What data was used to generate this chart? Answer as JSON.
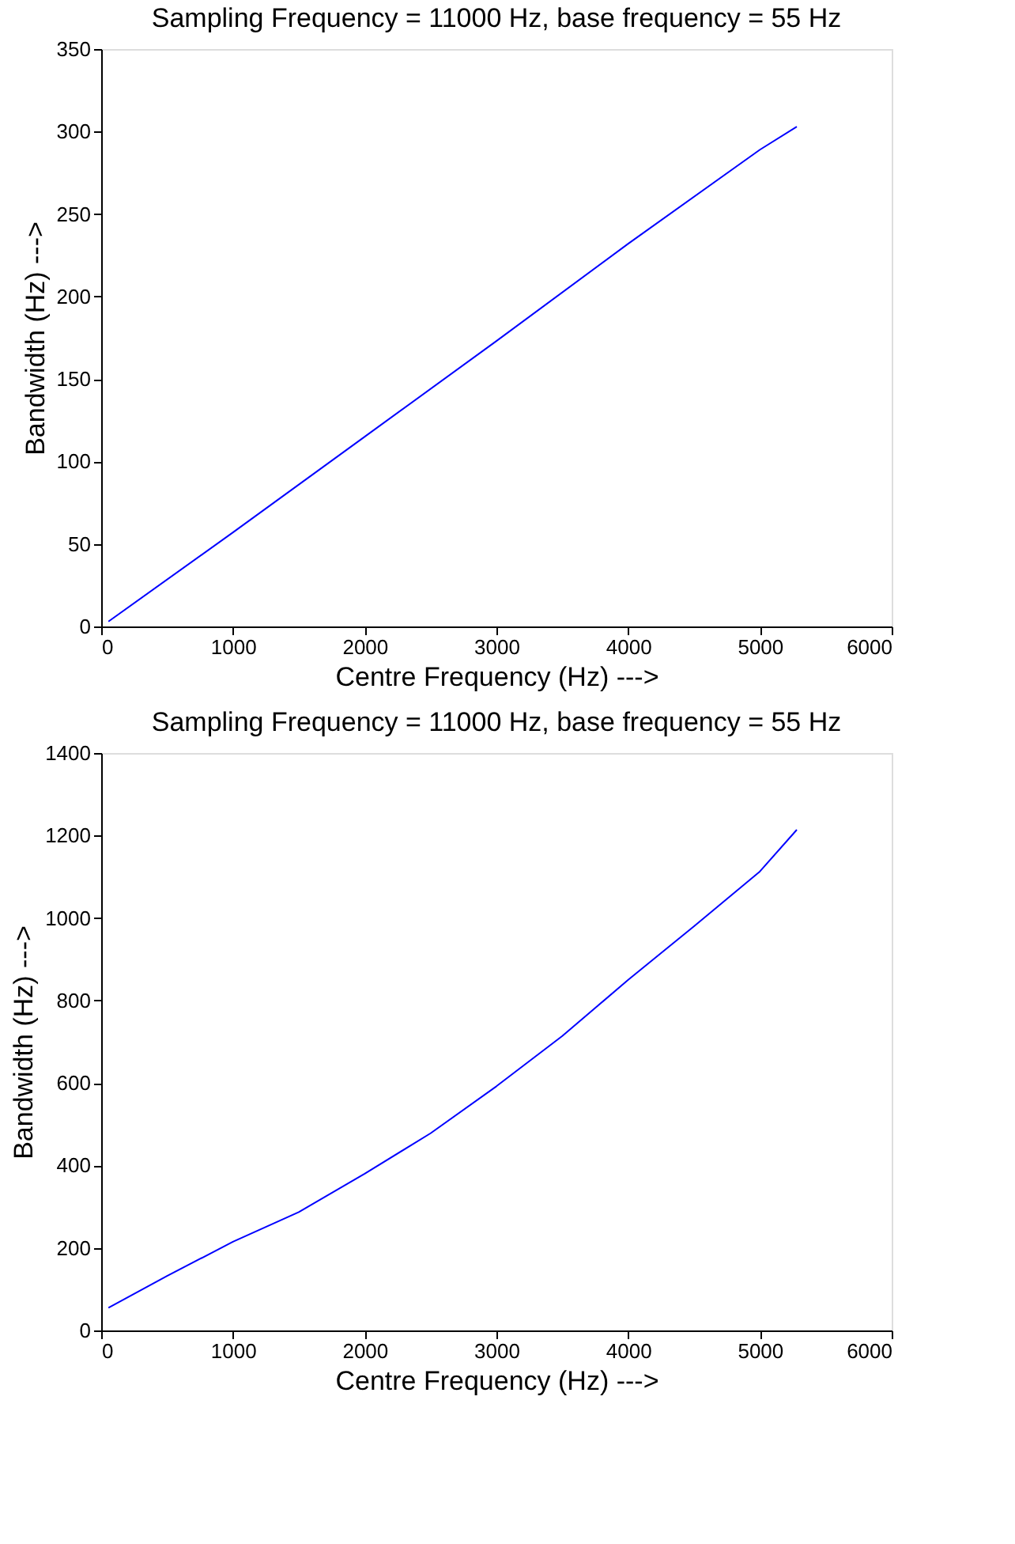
{
  "chart_data": [
    {
      "type": "line",
      "title": "Sampling Frequency = 11000 Hz, base frequency = 55 Hz",
      "xlabel": "Centre Frequency (Hz) --->",
      "ylabel": "Bandwidth (Hz) --->",
      "xlim": [
        0,
        6000
      ],
      "ylim": [
        0,
        350
      ],
      "xticks": [
        0,
        1000,
        2000,
        3000,
        4000,
        5000,
        6000
      ],
      "yticks": [
        0,
        50,
        100,
        150,
        200,
        250,
        300,
        350
      ],
      "grid": false,
      "marker": "none",
      "line_style": "solid",
      "series": [
        {
          "color": "#0000ff",
          "x": [
            55,
            1000,
            2000,
            3000,
            4000,
            5000,
            5280
          ],
          "values": [
            3,
            57,
            115,
            173,
            232,
            289,
            303
          ]
        }
      ]
    },
    {
      "type": "line",
      "title": "Sampling Frequency = 11000 Hz, base frequency = 55 Hz",
      "xlabel": "Centre Frequency (Hz) --->",
      "ylabel": "Bandwidth (Hz) --->",
      "xlim": [
        0,
        6000
      ],
      "ylim": [
        0,
        1400
      ],
      "xticks": [
        0,
        1000,
        2000,
        3000,
        4000,
        5000,
        6000
      ],
      "yticks": [
        0,
        200,
        400,
        600,
        800,
        1000,
        1200,
        1400
      ],
      "grid": false,
      "marker": "none",
      "line_style": "solid",
      "series": [
        {
          "color": "#0000ff",
          "x": [
            55,
            500,
            1000,
            1500,
            2000,
            2500,
            3000,
            3500,
            4000,
            4500,
            5000,
            5280
          ],
          "values": [
            55,
            132,
            215,
            287,
            380,
            478,
            592,
            714,
            850,
            980,
            1113,
            1214
          ]
        }
      ]
    }
  ]
}
